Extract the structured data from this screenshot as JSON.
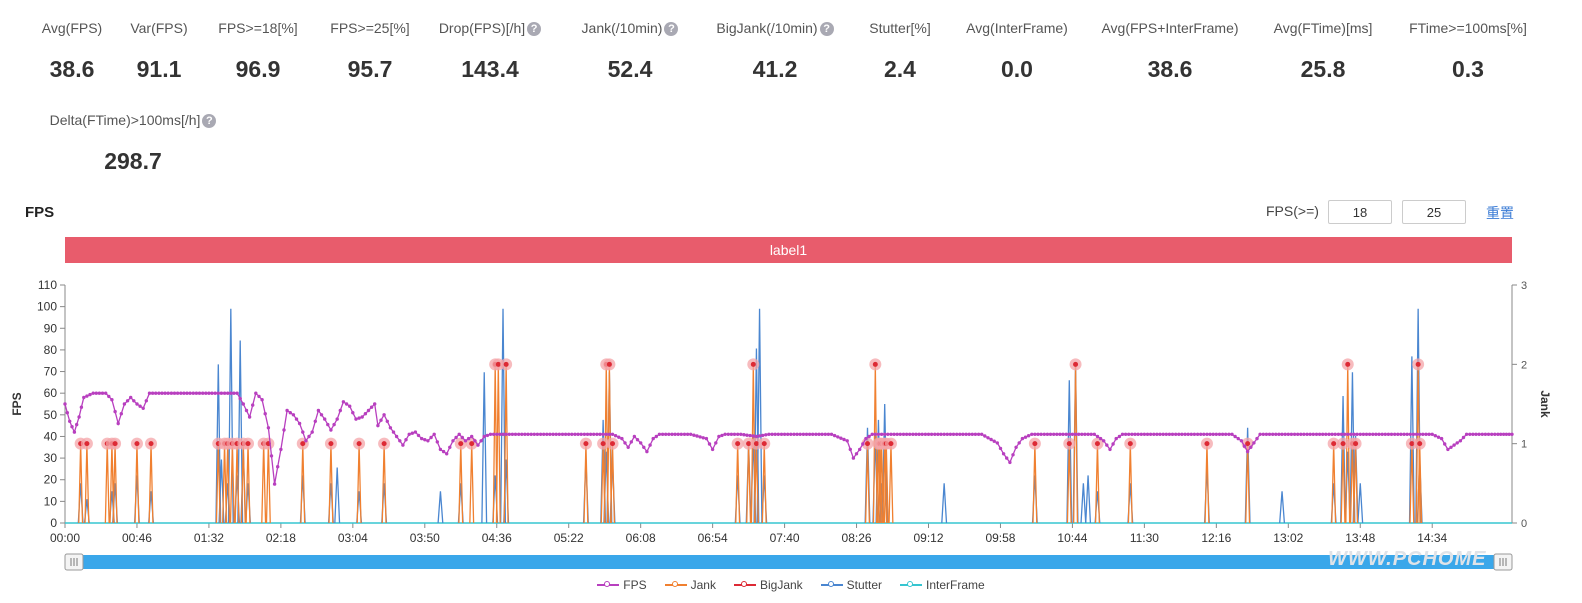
{
  "stats": [
    {
      "label": "Avg(FPS)",
      "value": "38.6",
      "help": false
    },
    {
      "label": "Var(FPS)",
      "value": "91.1",
      "help": false
    },
    {
      "label": "FPS>=18[%]",
      "value": "96.9",
      "help": false
    },
    {
      "label": "FPS>=25[%]",
      "value": "95.7",
      "help": false
    },
    {
      "label": "Drop(FPS)[/h]",
      "value": "143.4",
      "help": true
    },
    {
      "label": "Jank(/10min)",
      "value": "52.4",
      "help": true
    },
    {
      "label": "BigJank(/10min)",
      "value": "41.2",
      "help": true
    },
    {
      "label": "Stutter[%]",
      "value": "2.4",
      "help": false
    },
    {
      "label": "Avg(InterFrame)",
      "value": "0.0",
      "help": false
    },
    {
      "label": "Avg(FPS+InterFrame)",
      "value": "38.6",
      "help": false
    },
    {
      "label": "Avg(FTime)[ms]",
      "value": "25.8",
      "help": false
    },
    {
      "label": "FTime>=100ms[%]",
      "value": "0.3",
      "help": false
    },
    {
      "label": "Delta(FTime)>100ms[/h]",
      "value": "298.7",
      "help": true
    }
  ],
  "chart_title": "FPS",
  "fps_filter": {
    "label": "FPS(>=)",
    "low": "18",
    "high": "25",
    "reset_label": "重置"
  },
  "label_bar": "label1",
  "help_glyph": "?",
  "watermark": "WWW.PCHOME",
  "colors": {
    "fps": "#b83fbf",
    "jank": "#f08030",
    "bigjank": "#dd2a35",
    "stutter": "#4a86d0",
    "interframe": "#36c5d0",
    "label_bar": "#e85c6c",
    "slider": "#3aa7ea"
  },
  "chart_data": {
    "type": "line",
    "x_unit": "seconds",
    "xlim": [
      0,
      925
    ],
    "x_ticks": [
      "00:00",
      "00:46",
      "01:32",
      "02:18",
      "03:04",
      "03:50",
      "04:36",
      "05:22",
      "06:08",
      "06:54",
      "07:40",
      "08:26",
      "09:12",
      "09:58",
      "10:44",
      "11:30",
      "12:16",
      "13:02",
      "13:48",
      "14:34"
    ],
    "y_left": {
      "label": "FPS",
      "min": 0,
      "max": 110,
      "ticks": [
        0,
        10,
        20,
        30,
        40,
        50,
        60,
        70,
        80,
        90,
        100,
        110
      ]
    },
    "y_right": {
      "label": "Jank",
      "min": 0,
      "max": 3,
      "ticks": [
        0,
        1,
        2,
        3
      ]
    },
    "series": [
      {
        "name": "FPS",
        "axis": "left",
        "values": [
          [
            0,
            55
          ],
          [
            3,
            47
          ],
          [
            6,
            42
          ],
          [
            9,
            49
          ],
          [
            12,
            58
          ],
          [
            18,
            60
          ],
          [
            26,
            60
          ],
          [
            30,
            57
          ],
          [
            34,
            46
          ],
          [
            38,
            55
          ],
          [
            42,
            58
          ],
          [
            46,
            55
          ],
          [
            50,
            53
          ],
          [
            54,
            60
          ],
          [
            62,
            60
          ],
          [
            70,
            60
          ],
          [
            80,
            60
          ],
          [
            90,
            60
          ],
          [
            100,
            60
          ],
          [
            110,
            60
          ],
          [
            114,
            55
          ],
          [
            118,
            49
          ],
          [
            122,
            60
          ],
          [
            126,
            57
          ],
          [
            130,
            44
          ],
          [
            134,
            18
          ],
          [
            138,
            34
          ],
          [
            142,
            52
          ],
          [
            146,
            50
          ],
          [
            150,
            46
          ],
          [
            154,
            38
          ],
          [
            158,
            42
          ],
          [
            162,
            52
          ],
          [
            166,
            48
          ],
          [
            170,
            43
          ],
          [
            174,
            48
          ],
          [
            178,
            56
          ],
          [
            182,
            54
          ],
          [
            186,
            48
          ],
          [
            190,
            49
          ],
          [
            194,
            52
          ],
          [
            198,
            55
          ],
          [
            200,
            45
          ],
          [
            204,
            50
          ],
          [
            208,
            44
          ],
          [
            212,
            40
          ],
          [
            216,
            36
          ],
          [
            220,
            41
          ],
          [
            224,
            42
          ],
          [
            228,
            39
          ],
          [
            232,
            38
          ],
          [
            236,
            41
          ],
          [
            240,
            34
          ],
          [
            244,
            32
          ],
          [
            248,
            38
          ],
          [
            252,
            41
          ],
          [
            256,
            38
          ],
          [
            260,
            40
          ],
          [
            264,
            36
          ],
          [
            268,
            40
          ],
          [
            272,
            41
          ],
          [
            280,
            41
          ],
          [
            290,
            41
          ],
          [
            300,
            41
          ],
          [
            310,
            41
          ],
          [
            320,
            41
          ],
          [
            330,
            41
          ],
          [
            340,
            41
          ],
          [
            350,
            41
          ],
          [
            356,
            39
          ],
          [
            360,
            35
          ],
          [
            364,
            40
          ],
          [
            368,
            37
          ],
          [
            372,
            33
          ],
          [
            376,
            39
          ],
          [
            380,
            41
          ],
          [
            390,
            41
          ],
          [
            400,
            41
          ],
          [
            410,
            39
          ],
          [
            414,
            34
          ],
          [
            418,
            40
          ],
          [
            422,
            41
          ],
          [
            432,
            41
          ],
          [
            442,
            40
          ],
          [
            450,
            41
          ],
          [
            460,
            41
          ],
          [
            470,
            41
          ],
          [
            480,
            41
          ],
          [
            490,
            41
          ],
          [
            500,
            38
          ],
          [
            504,
            30
          ],
          [
            508,
            34
          ],
          [
            512,
            39
          ],
          [
            516,
            41
          ],
          [
            526,
            41
          ],
          [
            536,
            41
          ],
          [
            546,
            41
          ],
          [
            556,
            41
          ],
          [
            566,
            41
          ],
          [
            576,
            41
          ],
          [
            586,
            41
          ],
          [
            596,
            37
          ],
          [
            600,
            32
          ],
          [
            604,
            28
          ],
          [
            608,
            35
          ],
          [
            612,
            39
          ],
          [
            618,
            41
          ],
          [
            628,
            41
          ],
          [
            638,
            41
          ],
          [
            648,
            41
          ],
          [
            658,
            41
          ],
          [
            664,
            38
          ],
          [
            668,
            34
          ],
          [
            672,
            39
          ],
          [
            676,
            41
          ],
          [
            686,
            41
          ],
          [
            696,
            41
          ],
          [
            706,
            41
          ],
          [
            716,
            41
          ],
          [
            726,
            41
          ],
          [
            736,
            41
          ],
          [
            746,
            41
          ],
          [
            752,
            38
          ],
          [
            756,
            33
          ],
          [
            760,
            37
          ],
          [
            764,
            41
          ],
          [
            774,
            41
          ],
          [
            784,
            41
          ],
          [
            794,
            41
          ],
          [
            804,
            41
          ],
          [
            814,
            41
          ],
          [
            824,
            41
          ],
          [
            834,
            41
          ],
          [
            844,
            41
          ],
          [
            854,
            41
          ],
          [
            864,
            41
          ],
          [
            874,
            41
          ],
          [
            880,
            39
          ],
          [
            884,
            34
          ],
          [
            888,
            36
          ],
          [
            892,
            38
          ],
          [
            896,
            41
          ],
          [
            906,
            41
          ],
          [
            916,
            41
          ],
          [
            925,
            41
          ]
        ]
      },
      {
        "name": "Jank",
        "axis": "right",
        "spikes": [
          [
            10,
            1
          ],
          [
            14,
            1
          ],
          [
            27,
            1
          ],
          [
            30,
            1
          ],
          [
            32,
            1
          ],
          [
            46,
            1
          ],
          [
            55,
            1
          ],
          [
            98,
            1
          ],
          [
            102,
            1
          ],
          [
            104,
            1
          ],
          [
            107,
            1
          ],
          [
            110,
            1
          ],
          [
            114,
            1
          ],
          [
            117,
            1
          ],
          [
            127,
            1
          ],
          [
            130,
            1
          ],
          [
            152,
            1
          ],
          [
            170,
            1
          ],
          [
            188,
            1
          ],
          [
            204,
            1
          ],
          [
            253,
            1
          ],
          [
            260,
            1
          ],
          [
            275,
            2
          ],
          [
            277,
            2
          ],
          [
            282,
            2
          ],
          [
            333,
            1
          ],
          [
            344,
            1
          ],
          [
            346,
            2
          ],
          [
            348,
            2
          ],
          [
            350,
            1
          ],
          [
            430,
            1
          ],
          [
            437,
            1
          ],
          [
            440,
            2
          ],
          [
            442,
            1
          ],
          [
            447,
            1
          ],
          [
            513,
            1
          ],
          [
            518,
            2
          ],
          [
            520,
            1
          ],
          [
            521,
            1
          ],
          [
            522,
            1
          ],
          [
            524,
            1
          ],
          [
            525,
            1
          ],
          [
            528,
            1
          ],
          [
            620,
            1
          ],
          [
            642,
            1
          ],
          [
            646,
            2
          ],
          [
            660,
            1
          ],
          [
            681,
            1
          ],
          [
            730,
            1
          ],
          [
            756,
            1
          ],
          [
            811,
            1
          ],
          [
            817,
            1
          ],
          [
            820,
            2
          ],
          [
            823,
            1
          ],
          [
            825,
            1
          ],
          [
            861,
            1
          ],
          [
            865,
            2
          ],
          [
            866,
            1
          ]
        ]
      },
      {
        "name": "BigJank",
        "axis": "right",
        "spikes": []
      },
      {
        "name": "Stutter",
        "axis": "right",
        "spikes": [
          [
            10,
            0.5
          ],
          [
            14,
            0.3
          ],
          [
            30,
            0.4
          ],
          [
            32,
            0.5
          ],
          [
            46,
            0.6
          ],
          [
            55,
            0.4
          ],
          [
            98,
            2.0
          ],
          [
            100,
            0.8
          ],
          [
            104,
            0.5
          ],
          [
            106,
            2.7
          ],
          [
            110,
            0.6
          ],
          [
            112,
            2.3
          ],
          [
            114,
            0.9
          ],
          [
            117,
            0.5
          ],
          [
            152,
            0.6
          ],
          [
            170,
            0.5
          ],
          [
            174,
            0.7
          ],
          [
            188,
            0.4
          ],
          [
            204,
            0.5
          ],
          [
            240,
            0.4
          ],
          [
            253,
            0.5
          ],
          [
            268,
            1.9
          ],
          [
            275,
            0.6
          ],
          [
            280,
            2.7
          ],
          [
            282,
            0.8
          ],
          [
            333,
            0.8
          ],
          [
            344,
            1.3
          ],
          [
            346,
            0.9
          ],
          [
            348,
            1.9
          ],
          [
            350,
            0.8
          ],
          [
            430,
            0.6
          ],
          [
            437,
            1.0
          ],
          [
            440,
            1.1
          ],
          [
            442,
            2.2
          ],
          [
            444,
            2.7
          ],
          [
            447,
            0.6
          ],
          [
            513,
            1.2
          ],
          [
            518,
            1.1
          ],
          [
            520,
            1.3
          ],
          [
            521,
            0.6
          ],
          [
            522,
            0.5
          ],
          [
            524,
            1.5
          ],
          [
            562,
            0.5
          ],
          [
            620,
            0.6
          ],
          [
            642,
            1.8
          ],
          [
            646,
            2.0
          ],
          [
            651,
            0.5
          ],
          [
            654,
            0.6
          ],
          [
            660,
            0.4
          ],
          [
            681,
            0.5
          ],
          [
            730,
            0.7
          ],
          [
            756,
            1.2
          ],
          [
            778,
            0.4
          ],
          [
            811,
            0.5
          ],
          [
            817,
            1.6
          ],
          [
            820,
            0.9
          ],
          [
            823,
            1.9
          ],
          [
            825,
            1.1
          ],
          [
            828,
            0.5
          ],
          [
            861,
            2.1
          ],
          [
            865,
            2.7
          ],
          [
            866,
            0.8
          ]
        ]
      },
      {
        "name": "InterFrame",
        "axis": "right",
        "values": [
          [
            0,
            0
          ],
          [
            925,
            0
          ]
        ]
      }
    ],
    "legend": [
      "FPS",
      "Jank",
      "BigJank",
      "Stutter",
      "InterFrame"
    ],
    "legend_position": "bottom",
    "grid": false,
    "slider": {
      "start": 0,
      "end": 1
    }
  }
}
